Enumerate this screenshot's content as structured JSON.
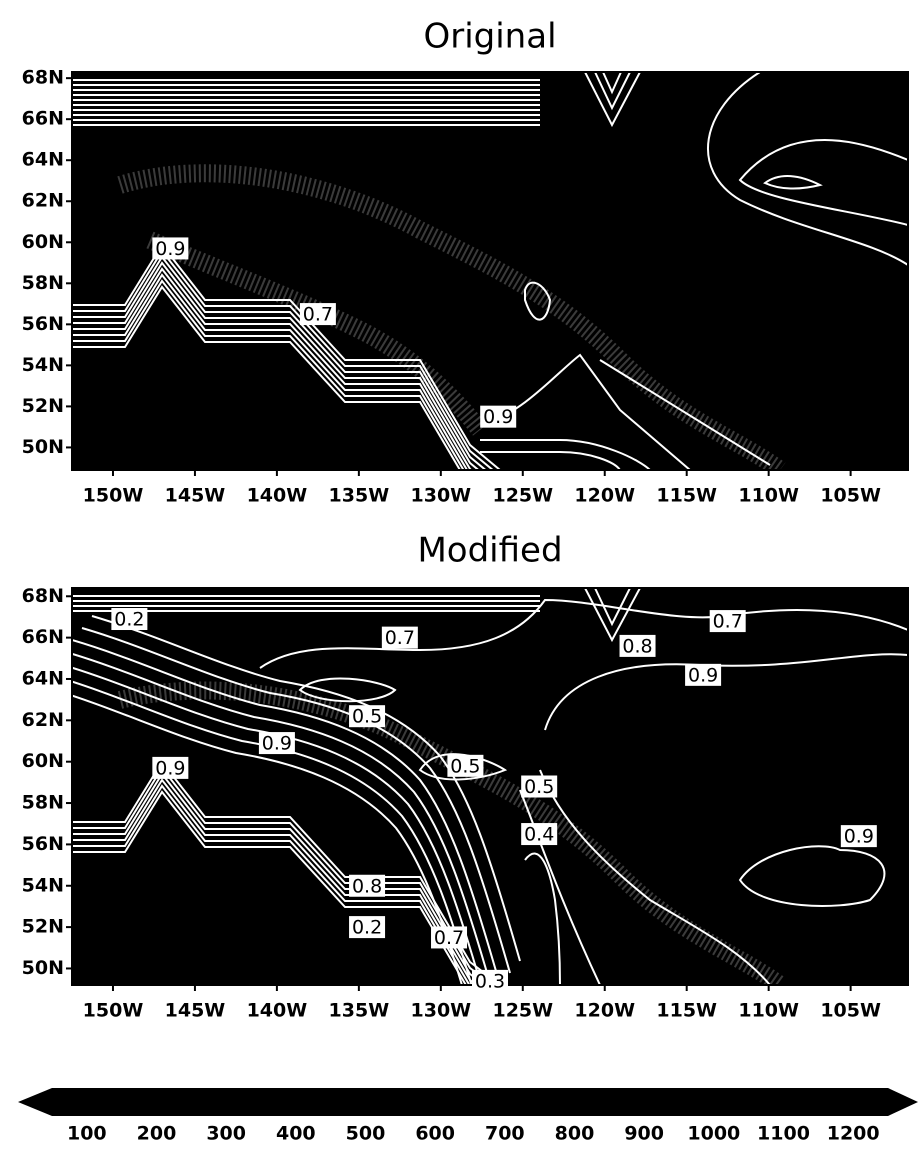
{
  "chart_data": [
    {
      "type": "contour",
      "title": "Original",
      "background": "#000000",
      "line_color": "#ffffff",
      "xlim": [
        -152.5,
        -101.5
      ],
      "ylim": [
        48.9,
        68.3
      ],
      "xticks": [
        {
          "value": -150,
          "label": "150W"
        },
        {
          "value": -145,
          "label": "145W"
        },
        {
          "value": -140,
          "label": "140W"
        },
        {
          "value": -135,
          "label": "135W"
        },
        {
          "value": -130,
          "label": "130W"
        },
        {
          "value": -125,
          "label": "125W"
        },
        {
          "value": -120,
          "label": "120W"
        },
        {
          "value": -115,
          "label": "115W"
        },
        {
          "value": -110,
          "label": "110W"
        },
        {
          "value": -105,
          "label": "105W"
        }
      ],
      "yticks": [
        {
          "value": 50,
          "label": "50N"
        },
        {
          "value": 52,
          "label": "52N"
        },
        {
          "value": 54,
          "label": "54N"
        },
        {
          "value": 56,
          "label": "56N"
        },
        {
          "value": 58,
          "label": "58N"
        },
        {
          "value": 60,
          "label": "60N"
        },
        {
          "value": 62,
          "label": "62N"
        },
        {
          "value": 64,
          "label": "64N"
        },
        {
          "value": 66,
          "label": "66N"
        },
        {
          "value": 68,
          "label": "68N"
        }
      ],
      "contour_labels": [
        {
          "lon": -146.5,
          "lat": 59.7,
          "value": 0.9
        },
        {
          "lon": -137.5,
          "lat": 56.5,
          "value": 0.7
        },
        {
          "lon": -126.5,
          "lat": 51.5,
          "value": 0.9
        }
      ]
    },
    {
      "type": "contour",
      "title": "Modified",
      "background": "#000000",
      "line_color": "#ffffff",
      "xlim": [
        -152.5,
        -101.5
      ],
      "ylim": [
        49.2,
        68.4
      ],
      "xticks": [
        {
          "value": -150,
          "label": "150W"
        },
        {
          "value": -145,
          "label": "145W"
        },
        {
          "value": -140,
          "label": "140W"
        },
        {
          "value": -135,
          "label": "135W"
        },
        {
          "value": -130,
          "label": "130W"
        },
        {
          "value": -125,
          "label": "125W"
        },
        {
          "value": -120,
          "label": "120W"
        },
        {
          "value": -115,
          "label": "115W"
        },
        {
          "value": -110,
          "label": "110W"
        },
        {
          "value": -105,
          "label": "105W"
        }
      ],
      "yticks": [
        {
          "value": 50,
          "label": "50N"
        },
        {
          "value": 52,
          "label": "52N"
        },
        {
          "value": 54,
          "label": "54N"
        },
        {
          "value": 56,
          "label": "56N"
        },
        {
          "value": 58,
          "label": "58N"
        },
        {
          "value": 60,
          "label": "60N"
        },
        {
          "value": 62,
          "label": "62N"
        },
        {
          "value": 64,
          "label": "64N"
        },
        {
          "value": 66,
          "label": "66N"
        },
        {
          "value": 68,
          "label": "68N"
        }
      ],
      "contour_labels": [
        {
          "lon": -149,
          "lat": 66.9,
          "value": 0.2
        },
        {
          "lon": -132.5,
          "lat": 66.0,
          "value": 0.7
        },
        {
          "lon": -118,
          "lat": 65.6,
          "value": 0.8
        },
        {
          "lon": -112.5,
          "lat": 66.8,
          "value": 0.7
        },
        {
          "lon": -114,
          "lat": 64.2,
          "value": 0.9
        },
        {
          "lon": -134.5,
          "lat": 62.2,
          "value": 0.5
        },
        {
          "lon": -140,
          "lat": 60.9,
          "value": 0.9
        },
        {
          "lon": -146.5,
          "lat": 59.7,
          "value": 0.9
        },
        {
          "lon": -128.5,
          "lat": 59.8,
          "value": 0.5
        },
        {
          "lon": -124,
          "lat": 58.8,
          "value": 0.5
        },
        {
          "lon": -124,
          "lat": 56.5,
          "value": 0.4
        },
        {
          "lon": -104.5,
          "lat": 56.4,
          "value": 0.9
        },
        {
          "lon": -134.5,
          "lat": 54.0,
          "value": 0.8
        },
        {
          "lon": -134.5,
          "lat": 52.0,
          "value": 0.2
        },
        {
          "lon": -129.5,
          "lat": 51.5,
          "value": 0.7
        },
        {
          "lon": -127,
          "lat": 49.4,
          "value": 0.3
        }
      ]
    },
    {
      "type": "colorbar",
      "color": "#000000",
      "xlim": [
        50,
        1250
      ],
      "xticks": [
        100,
        200,
        300,
        400,
        500,
        600,
        700,
        800,
        900,
        1000,
        1100,
        1200
      ]
    }
  ]
}
